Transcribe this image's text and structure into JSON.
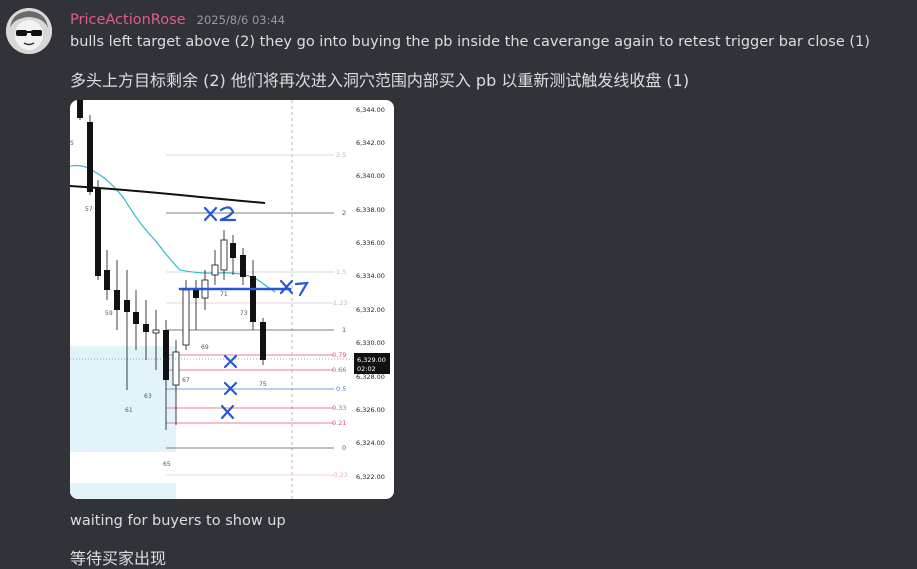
{
  "message": {
    "username": "PriceActionRose",
    "timestamp": "2025/8/6 03:44",
    "text_en": "bulls left target above (2)  they go into buying the pb inside the caverange again to retest trigger bar close (1)",
    "text_zh": "多头上方目标剩余 (2) 他们将再次进入洞穴范围内部买入 pb 以重新测试触发线收盘 (1)",
    "followup_en": "waiting for buyers to show up",
    "followup_zh": "等待买家出现"
  },
  "chart": {
    "price_labels": [
      "6,344.00",
      "6,342.00",
      "6,340.00",
      "6,338.00",
      "6,336.00",
      "6,334.00",
      "6,332.00",
      "6,330.00",
      "6,328.00",
      "6,326.00",
      "6,324.00",
      "6,322.00"
    ],
    "fib_levels": [
      {
        "label": "2.5",
        "color": "#bbbbbb"
      },
      {
        "label": "2",
        "color": "#555555"
      },
      {
        "label": "1.5",
        "color": "#bbbbbb"
      },
      {
        "label": "1.23",
        "color": "#bbbbbb"
      },
      {
        "label": "1",
        "color": "#555555"
      },
      {
        "label": "0.79",
        "color": "#e0556a"
      },
      {
        "label": "0.66",
        "color": "#e0556a"
      },
      {
        "label": "0.5",
        "color": "#4a7fd0"
      },
      {
        "label": "0.33",
        "color": "#e0556a"
      },
      {
        "label": "0.21",
        "color": "#e0556a"
      },
      {
        "label": "0",
        "color": "#555555"
      },
      {
        "label": "-0.23",
        "color": "#f0b0b8"
      }
    ],
    "bar_numbers": [
      "5",
      "57",
      "59",
      "61",
      "63",
      "65",
      "67",
      "69",
      "71",
      "73",
      "75"
    ],
    "current_price": "6,329.00",
    "countdown": "02:02",
    "annotations": {
      "target_mark": "X2",
      "trigger_mark": "X1",
      "cross_mark": "X"
    }
  }
}
